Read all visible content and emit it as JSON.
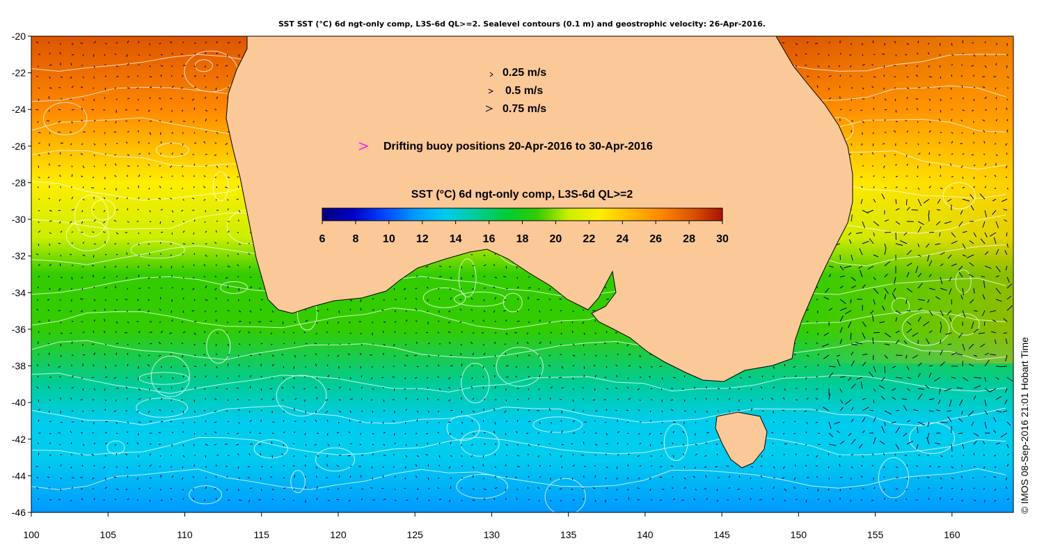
{
  "title": "SST SST (°C) 6d ngt-only comp, L3S-6d QL>=2. Sealevel contours (0.1 m) and geostrophic velocity: 26-Apr-2016.",
  "credit": "© IMOS 08-Sep-2016 21:01 Hobart Time",
  "velocity_legend": [
    {
      "label": "0.25 m/s",
      "speed": 0.25
    },
    {
      "label": "0.5 m/s",
      "speed": 0.5
    },
    {
      "label": "0.75 m/s",
      "speed": 0.75
    }
  ],
  "buoy_legend": {
    "label": "Drifting buoy positions 20-Apr-2016 to 30-Apr-2016",
    "color": "#ff00ff"
  },
  "colorbar": {
    "title": "SST (°C) 6d ngt-only comp, L3S-6d QL>=2",
    "ticks": [
      "6",
      "8",
      "10",
      "12",
      "14",
      "16",
      "18",
      "20",
      "22",
      "24",
      "26",
      "28",
      "30"
    ],
    "range": [
      6,
      30
    ],
    "colors": [
      "#00007f",
      "#0000c8",
      "#0044ff",
      "#0099ff",
      "#00ccee",
      "#00cc99",
      "#00cc33",
      "#33cc00",
      "#ccee00",
      "#ffee00",
      "#ffbb00",
      "#ff8800",
      "#dd5500",
      "#aa1100"
    ]
  },
  "x_axis": {
    "ticks": [
      "100",
      "105",
      "110",
      "115",
      "120",
      "125",
      "130",
      "135",
      "140",
      "145",
      "150",
      "155",
      "160"
    ],
    "range": [
      100,
      164
    ]
  },
  "y_axis": {
    "ticks": [
      "-20",
      "-22",
      "-24",
      "-26",
      "-28",
      "-30",
      "-32",
      "-34",
      "-36",
      "-38",
      "-40",
      "-42",
      "-44",
      "-46"
    ],
    "range": [
      -46,
      -20
    ]
  },
  "colors": {
    "land": "#fbc898",
    "contour": "#ffffff",
    "arrow": "#000033",
    "frame": "#000000"
  },
  "sst_bands": [
    {
      "lat": -20,
      "sst": 28.5
    },
    {
      "lat": -24,
      "sst": 26.5
    },
    {
      "lat": -28,
      "sst": 23.5
    },
    {
      "lat": -31,
      "sst": 21.5
    },
    {
      "lat": -33,
      "sst": 19.5
    },
    {
      "lat": -36,
      "sst": 18
    },
    {
      "lat": -39,
      "sst": 16
    },
    {
      "lat": -41,
      "sst": 14
    },
    {
      "lat": -43,
      "sst": 12.5
    },
    {
      "lat": -46,
      "sst": 11
    }
  ]
}
